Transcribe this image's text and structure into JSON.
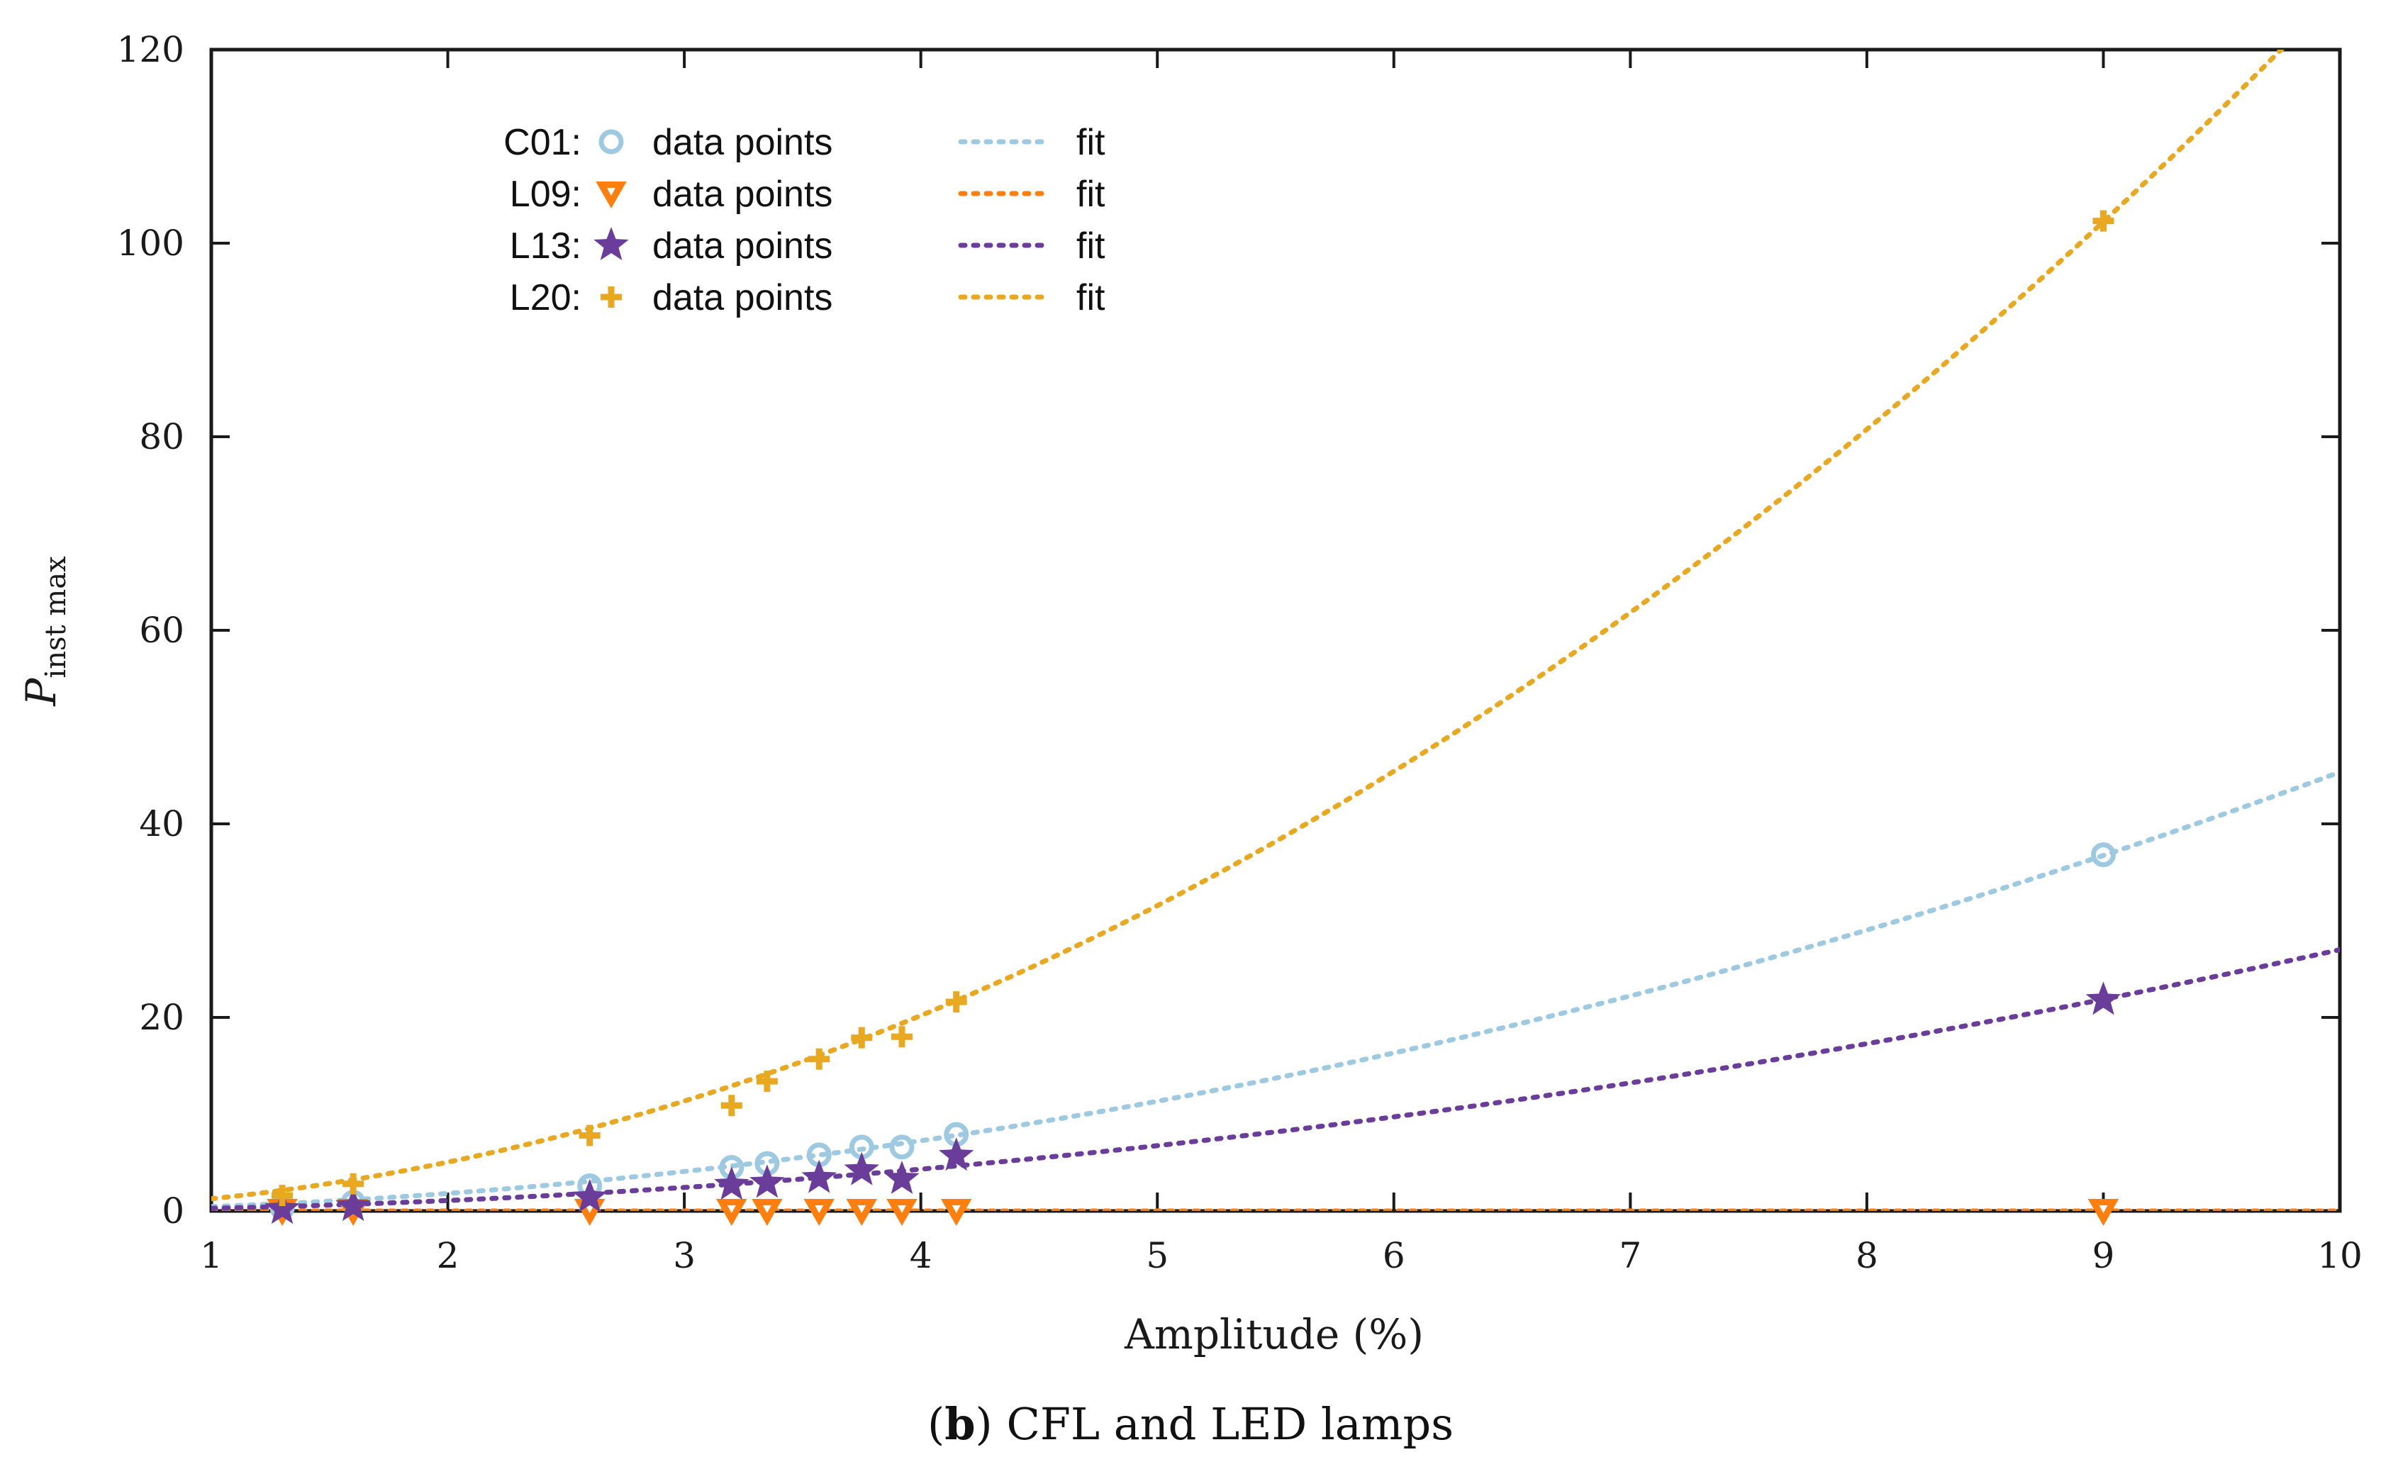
{
  "chart_data": {
    "type": "scatter",
    "xlabel": "Amplitude (%)",
    "ylabel": {
      "main": "P",
      "sub": "inst max"
    },
    "xlim": [
      1,
      10
    ],
    "ylim": [
      0,
      120
    ],
    "xticks": [
      1,
      2,
      3,
      4,
      5,
      6,
      7,
      8,
      9,
      10
    ],
    "yticks": [
      0,
      20,
      40,
      60,
      80,
      100,
      120
    ],
    "grid": false,
    "legend_position": "top-left",
    "caption": {
      "open": "(",
      "bold": "b",
      "rest": ") CFL and LED lamps"
    },
    "series": [
      {
        "name": "C01",
        "legend_points": "data points",
        "legend_fit": "fit",
        "color": "#9ecae1",
        "marker": "circle",
        "x": [
          1.3,
          1.6,
          2.6,
          3.2,
          3.35,
          3.57,
          3.75,
          3.92,
          4.15,
          9.0
        ],
        "y": [
          0.3,
          0.9,
          2.6,
          4.5,
          4.9,
          5.8,
          6.6,
          6.6,
          7.9,
          36.8
        ],
        "fit": {
          "a": 0.4535,
          "b": 2.0
        }
      },
      {
        "name": "L09",
        "legend_points": "data points",
        "legend_fit": "fit",
        "color": "#ff7f0e",
        "marker": "triangle-down",
        "x": [
          1.3,
          1.6,
          2.6,
          3.2,
          3.35,
          3.57,
          3.75,
          3.92,
          4.15,
          9.0
        ],
        "y": [
          0.0,
          0.0,
          0.0,
          0.0,
          0.0,
          0.0,
          0.0,
          0.0,
          0.0,
          0.0
        ],
        "fit": {
          "a": 0.0,
          "b": 2.0
        }
      },
      {
        "name": "L13",
        "legend_points": "data points",
        "legend_fit": "fit",
        "color": "#6a3d9a",
        "marker": "star",
        "x": [
          1.3,
          1.6,
          2.6,
          3.2,
          3.35,
          3.57,
          3.75,
          3.92,
          4.15,
          9.0
        ],
        "y": [
          0.2,
          0.5,
          1.4,
          2.7,
          2.9,
          3.4,
          4.2,
          3.3,
          5.7,
          21.8
        ],
        "fit": {
          "a": 0.27,
          "b": 2.0
        }
      },
      {
        "name": "L20",
        "legend_points": "data points",
        "legend_fit": "fit",
        "color": "#e8a820",
        "marker": "plus",
        "x": [
          1.3,
          1.6,
          2.6,
          3.2,
          3.35,
          3.57,
          3.75,
          3.92,
          4.15,
          9.0
        ],
        "y": [
          1.6,
          2.8,
          7.8,
          10.9,
          13.4,
          15.7,
          17.9,
          18.0,
          21.6,
          102.3
        ],
        "fit": {
          "a": 1.262,
          "b": 2.0
        }
      }
    ]
  }
}
